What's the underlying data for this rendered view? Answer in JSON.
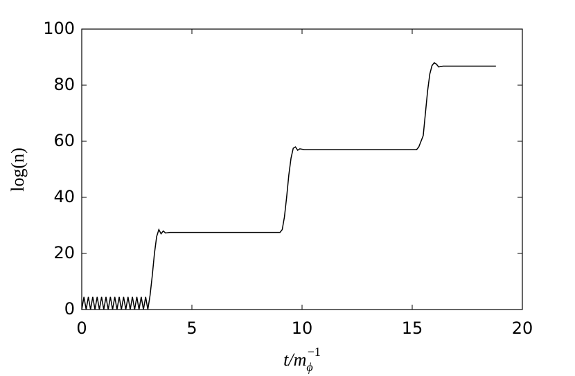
{
  "chart_data": {
    "type": "line",
    "xlabel": {
      "base": "t/m",
      "sub": "ϕ",
      "sup": "−1"
    },
    "ylabel": "log(n)",
    "x": [
      0,
      0.1,
      0.2,
      0.3,
      0.4,
      0.5,
      0.6,
      0.7,
      0.8,
      0.9,
      1.0,
      1.1,
      1.2,
      1.3,
      1.4,
      1.5,
      1.6,
      1.7,
      1.8,
      1.9,
      2.0,
      2.1,
      2.2,
      2.3,
      2.4,
      2.5,
      2.6,
      2.7,
      2.8,
      2.9,
      3.0,
      3.1,
      3.2,
      3.3,
      3.4,
      3.5,
      3.6,
      3.7,
      3.8,
      4.0,
      9.0,
      9.1,
      9.2,
      9.3,
      9.4,
      9.5,
      9.6,
      9.7,
      9.8,
      9.9,
      10.1,
      15.2,
      15.3,
      15.5,
      15.6,
      15.7,
      15.8,
      15.9,
      16.0,
      16.1,
      16.2,
      16.4,
      18.8
    ],
    "series": [
      {
        "color": "#000000",
        "values": [
          0,
          4.5,
          0,
          4.5,
          0,
          4.5,
          0,
          4.5,
          0,
          4.5,
          0,
          4.5,
          0,
          4.5,
          0,
          4.5,
          0,
          4.5,
          0,
          4.5,
          0,
          4.5,
          0,
          4.5,
          0,
          4.5,
          0,
          4.5,
          0,
          4.5,
          0,
          5,
          12,
          20,
          26,
          28.5,
          27,
          28,
          27.3,
          27.5,
          27.5,
          28.5,
          33,
          40,
          48,
          54,
          57.5,
          58,
          56.8,
          57.3,
          57,
          57,
          58,
          62,
          70,
          78,
          84,
          87,
          88,
          87.5,
          86.5,
          86.8,
          86.8
        ]
      }
    ],
    "xlim": [
      0,
      20
    ],
    "xticks": [
      0,
      5,
      10,
      15,
      20
    ],
    "ylim": [
      0,
      100
    ],
    "yticks": [
      0,
      20,
      40,
      60,
      80,
      100
    ],
    "grid": false
  }
}
